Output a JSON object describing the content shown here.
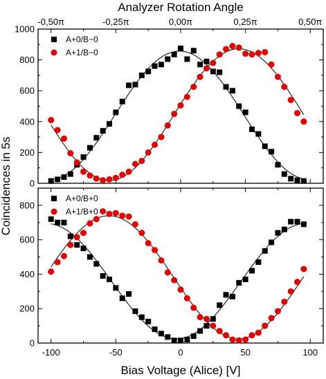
{
  "chart_data": {
    "type": "scatter",
    "shared_x": {
      "label": "Bias Voltage (Alice) [V]",
      "range": [
        -110,
        110
      ],
      "ticks": [
        -100,
        -50,
        0,
        50,
        100
      ],
      "tick_labels": [
        "-100",
        "-50",
        "0",
        "50",
        "100"
      ]
    },
    "shared_y_label": "Coincidences in 5s",
    "top_axis": {
      "label": "Analyzer Rotation Angle",
      "ticks_at_x": [
        -100,
        -50,
        0,
        50,
        100
      ],
      "tick_labels": [
        "-0,50π",
        "-0,25π",
        "0,00π",
        "0,25π",
        "0,50π"
      ]
    },
    "panels": [
      {
        "ylim": [
          0,
          1000
        ],
        "yticks": [
          0,
          200,
          400,
          600,
          800,
          1000
        ],
        "ytick_labels": [
          "0",
          "200",
          "400",
          "600",
          "800",
          "1000"
        ],
        "legend_position": "top-left",
        "series": [
          {
            "name": "A+0/B−0",
            "marker": "square",
            "color": "#000000",
            "x": [
              -100,
              -95,
              -90,
              -85,
              -80,
              -75,
              -70,
              -65,
              -60,
              -55,
              -50,
              -45,
              -40,
              -35,
              -30,
              -25,
              -20,
              -15,
              -10,
              -5,
              0,
              5,
              10,
              15,
              20,
              25,
              30,
              35,
              40,
              45,
              50,
              55,
              60,
              65,
              70,
              75,
              80,
              85,
              90,
              95
            ],
            "y": [
              15,
              25,
              40,
              60,
              120,
              170,
              230,
              295,
              340,
              385,
              460,
              530,
              635,
              640,
              700,
              725,
              760,
              770,
              805,
              835,
              875,
              805,
              860,
              770,
              790,
              725,
              720,
              625,
              600,
              500,
              460,
              350,
              320,
              240,
              205,
              120,
              60,
              30,
              20,
              15
            ]
          },
          {
            "name": "A+1/B−0",
            "marker": "circle",
            "color": "#e00000",
            "x": [
              -100,
              -95,
              -90,
              -85,
              -80,
              -75,
              -70,
              -65,
              -60,
              -55,
              -50,
              -45,
              -40,
              -35,
              -30,
              -25,
              -20,
              -15,
              -10,
              -5,
              0,
              5,
              10,
              15,
              20,
              25,
              30,
              35,
              40,
              45,
              50,
              55,
              60,
              65,
              70,
              75,
              80,
              85,
              90,
              95
            ],
            "y": [
              410,
              345,
              290,
              195,
              135,
              75,
              50,
              30,
              20,
              25,
              35,
              55,
              75,
              125,
              145,
              200,
              250,
              300,
              375,
              450,
              505,
              560,
              625,
              690,
              745,
              780,
              835,
              870,
              890,
              880,
              840,
              835,
              845,
              850,
              770,
              690,
              625,
              540,
              455,
              400
            ]
          }
        ]
      },
      {
        "ylim": [
          0,
          900
        ],
        "yticks": [
          0,
          200,
          400,
          600,
          800
        ],
        "ytick_labels": [
          "0",
          "200",
          "400",
          "600",
          "800"
        ],
        "legend_position": "top-left",
        "series": [
          {
            "name": "A+0/B+0",
            "marker": "square",
            "color": "#000000",
            "x": [
              -100,
              -95,
              -90,
              -85,
              -80,
              -75,
              -70,
              -65,
              -60,
              -55,
              -50,
              -45,
              -40,
              -35,
              -30,
              -25,
              -20,
              -15,
              -10,
              -5,
              0,
              5,
              10,
              15,
              20,
              25,
              30,
              35,
              40,
              45,
              50,
              55,
              60,
              65,
              70,
              75,
              80,
              85,
              90,
              95
            ],
            "y": [
              720,
              700,
              700,
              620,
              570,
              550,
              500,
              460,
              390,
              370,
              320,
              260,
              285,
              185,
              150,
              125,
              80,
              55,
              35,
              15,
              15,
              20,
              40,
              70,
              100,
              140,
              220,
              280,
              270,
              350,
              370,
              420,
              470,
              535,
              585,
              640,
              660,
              705,
              705,
              690
            ]
          },
          {
            "name": "A+1/B+0",
            "marker": "circle",
            "color": "#e00000",
            "x": [
              -100,
              -95,
              -90,
              -85,
              -80,
              -75,
              -70,
              -65,
              -60,
              -55,
              -50,
              -45,
              -40,
              -35,
              -30,
              -25,
              -20,
              -15,
              -10,
              -5,
              0,
              5,
              10,
              15,
              20,
              25,
              30,
              35,
              40,
              45,
              50,
              55,
              60,
              65,
              70,
              75,
              80,
              85,
              90,
              95
            ],
            "y": [
              415,
              470,
              505,
              570,
              615,
              640,
              695,
              720,
              765,
              750,
              755,
              740,
              735,
              690,
              640,
              580,
              540,
              480,
              410,
              365,
              310,
              260,
              205,
              150,
              140,
              100,
              70,
              45,
              20,
              15,
              20,
              45,
              60,
              100,
              145,
              185,
              240,
              300,
              355,
              430
            ]
          }
        ]
      }
    ]
  }
}
